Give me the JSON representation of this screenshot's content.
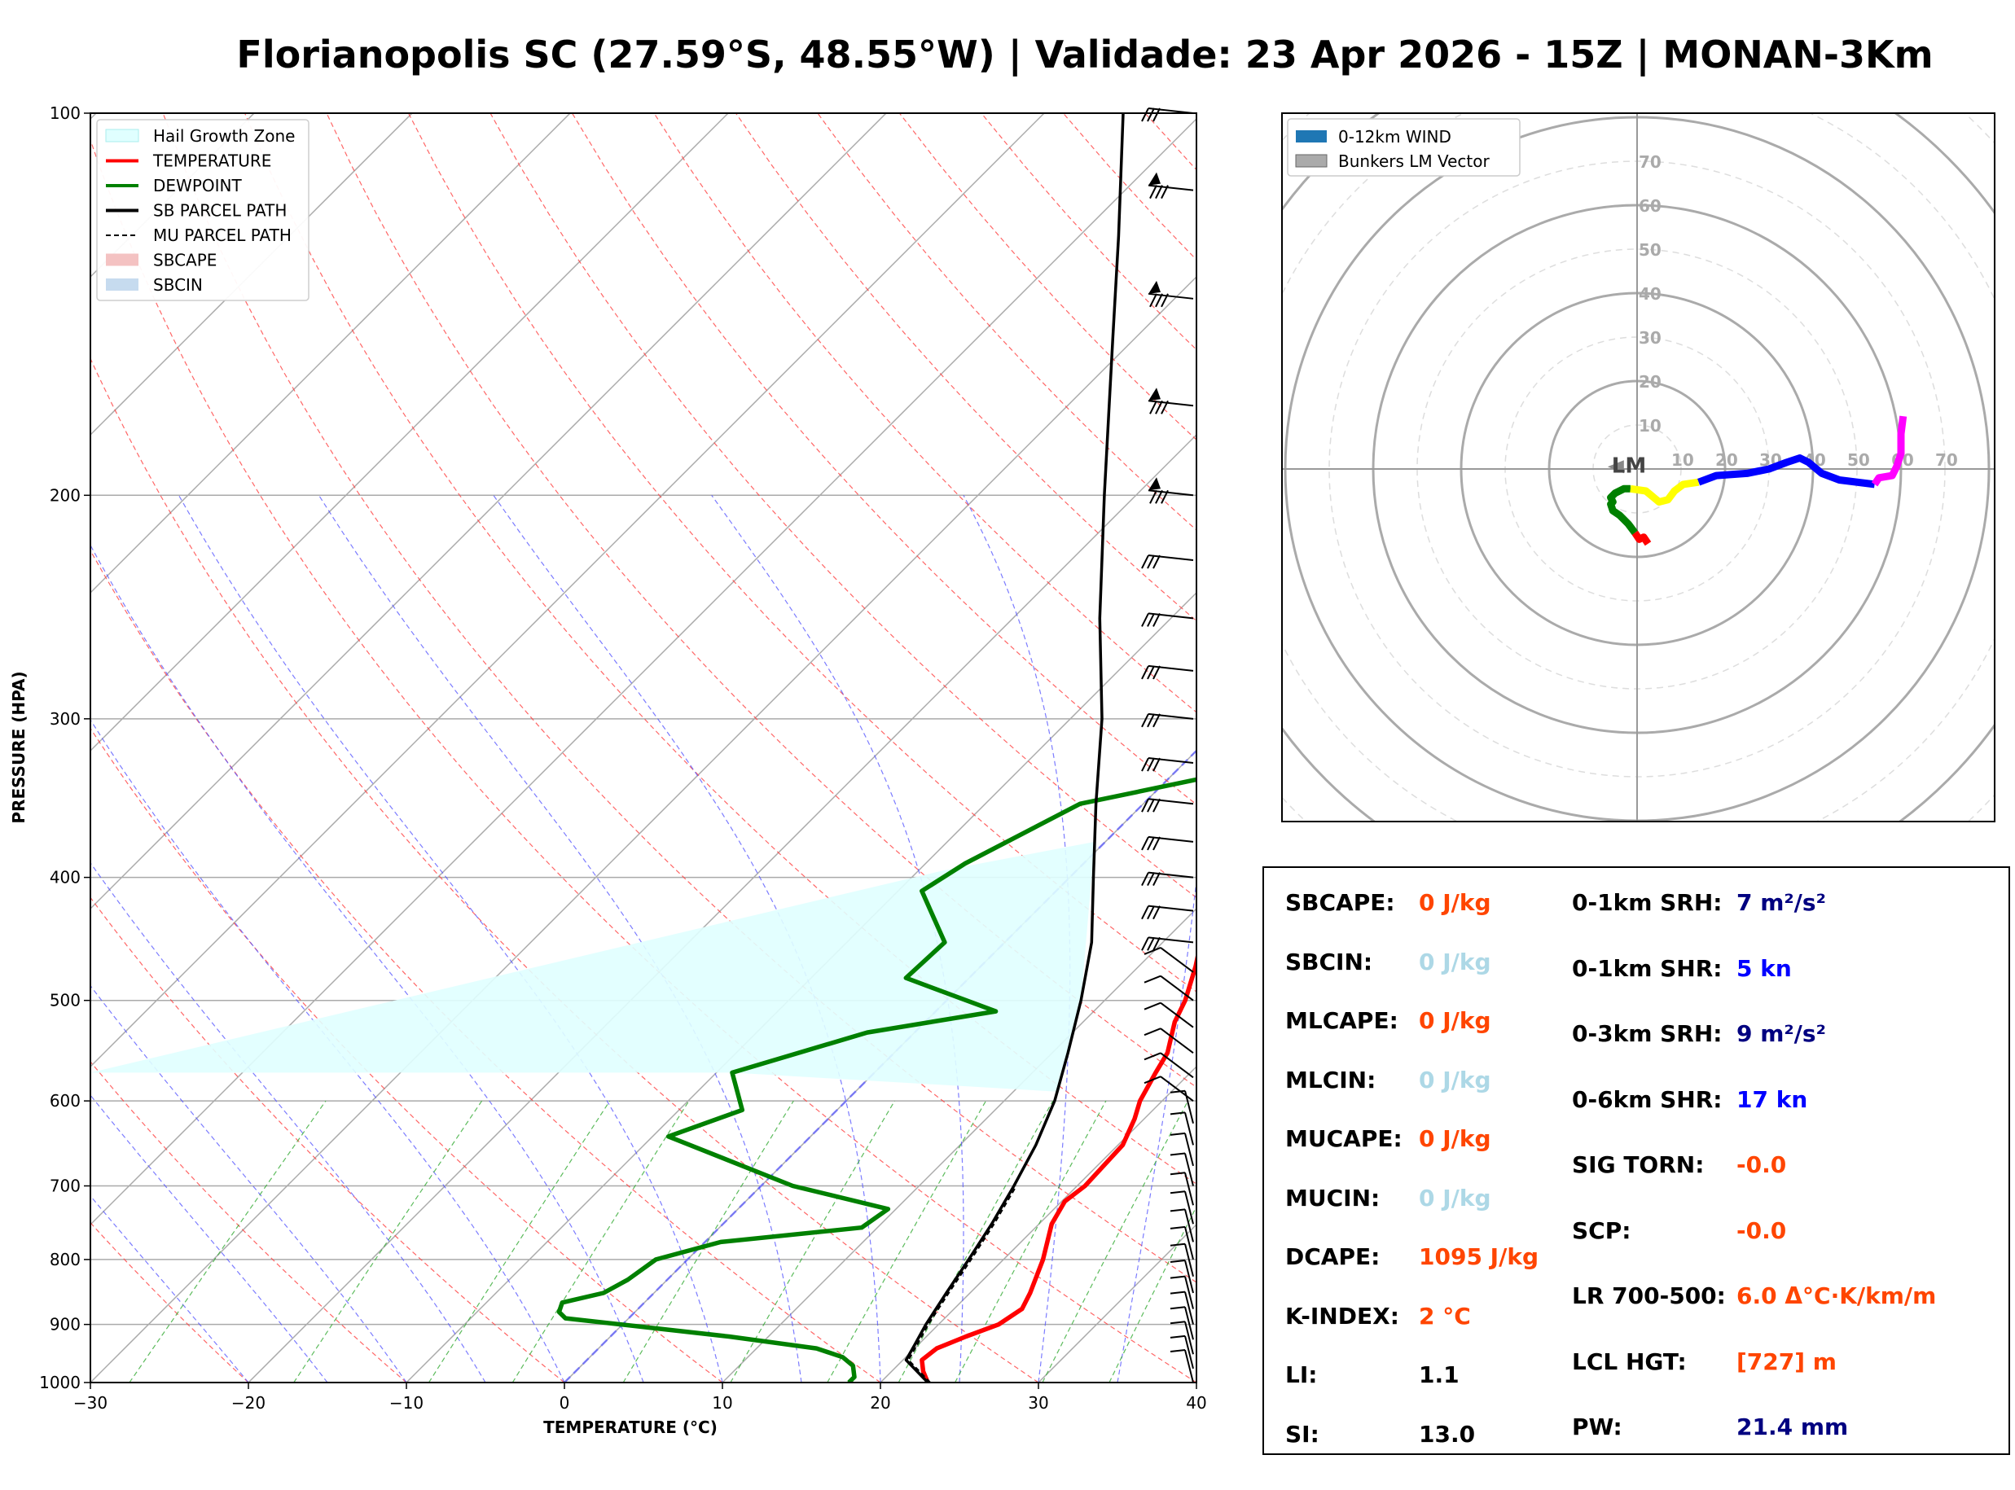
{
  "title": "Florianopolis SC (27.59°S, 48.55°W) | Validade: 23 Apr 2026 - 15Z | MONAN-3Km",
  "chart_data": [
    {
      "type": "line",
      "subtype": "skew-T log-P",
      "xlabel": "TEMPERATURE (°C)",
      "ylabel": "PRESSURE (HPA)",
      "xlim": [
        -30,
        40
      ],
      "ylim": [
        1000,
        100
      ],
      "x_ticks": [
        -30,
        -20,
        -10,
        0,
        10,
        20,
        30,
        40
      ],
      "x_tick_labels": [
        "−30",
        "−20",
        "−10",
        "0",
        "10",
        "20",
        "30",
        "40"
      ],
      "y_ticks": [
        100,
        200,
        300,
        400,
        500,
        600,
        700,
        800,
        900,
        1000
      ],
      "y_tick_labels": [
        "100",
        "200",
        "300",
        "400",
        "500",
        "600",
        "700",
        "800",
        "900",
        "1000"
      ],
      "y_scale": "log",
      "grid": true,
      "legend_position": "top-left",
      "legend": [
        {
          "label": "Hail Growth Zone",
          "color": "#e0ffff",
          "kind": "fill"
        },
        {
          "label": "TEMPERATURE",
          "color": "#ff0000",
          "kind": "line"
        },
        {
          "label": "DEWPOINT",
          "color": "#008000",
          "kind": "line"
        },
        {
          "label": "SB PARCEL PATH",
          "color": "#000000",
          "kind": "line"
        },
        {
          "label": "MU PARCEL PATH",
          "color": "#000000",
          "kind": "dashed"
        },
        {
          "label": "SBCAPE",
          "color": "#f4c2c2",
          "kind": "fill"
        },
        {
          "label": "SBCIN",
          "color": "#c6dbef",
          "kind": "fill"
        }
      ],
      "series": [
        {
          "name": "TEMPERATURE",
          "color": "#ff0000",
          "points": [
            [
              1000,
              23
            ],
            [
              980,
              22
            ],
            [
              960,
              21.2
            ],
            [
              940,
              21.4
            ],
            [
              920,
              22.5
            ],
            [
              900,
              23.8
            ],
            [
              875,
              24.3
            ],
            [
              850,
              23.8
            ],
            [
              800,
              22.5
            ],
            [
              750,
              20.8
            ],
            [
              720,
              20.2
            ],
            [
              700,
              20.5
            ],
            [
              650,
              20.3
            ],
            [
              620,
              19.4
            ],
            [
              600,
              18.6
            ],
            [
              570,
              17.8
            ],
            [
              550,
              17.3
            ],
            [
              520,
              15.8
            ],
            [
              500,
              15.1
            ],
            [
              470,
              13.6
            ],
            [
              450,
              12.4
            ],
            [
              420,
              11.3
            ],
            [
              400,
              11.0
            ],
            [
              380,
              10.0
            ],
            [
              360,
              8.0
            ],
            [
              340,
              5.5
            ],
            [
              300,
              1.5
            ],
            [
              275,
              -1.0
            ],
            [
              250,
              -4.0
            ],
            [
              225,
              -6.5
            ],
            [
              200,
              -8.0
            ],
            [
              175,
              -8.2
            ],
            [
              160,
              -9.5
            ],
            [
              150,
              -9.8
            ],
            [
              140,
              -9.5
            ],
            [
              125,
              -8.3
            ],
            [
              115,
              -7.5
            ],
            [
              100,
              -2.5
            ]
          ]
        },
        {
          "name": "DEWPOINT",
          "color": "#008000",
          "points": [
            [
              1000,
              18
            ],
            [
              990,
              18.0
            ],
            [
              970,
              17.2
            ],
            [
              955,
              16.0
            ],
            [
              940,
              13.8
            ],
            [
              920,
              7.5
            ],
            [
              890,
              -4.0
            ],
            [
              880,
              -4.8
            ],
            [
              865,
              -5.2
            ],
            [
              850,
              -3.2
            ],
            [
              830,
              -2.5
            ],
            [
              800,
              -2.0
            ],
            [
              775,
              1.0
            ],
            [
              755,
              9.0
            ],
            [
              730,
              9.5
            ],
            [
              700,
              2.0
            ],
            [
              640,
              -9.0
            ],
            [
              610,
              -6.0
            ],
            [
              570,
              -9.0
            ],
            [
              530,
              -3.0
            ],
            [
              510,
              3.8
            ],
            [
              480,
              -4.0
            ],
            [
              450,
              -3.8
            ],
            [
              410,
              -8.5
            ],
            [
              390,
              -7.5
            ],
            [
              350,
              -4.0
            ],
            [
              330,
              3.8
            ],
            [
              300,
              3.5
            ],
            [
              270,
              0.5
            ],
            [
              250,
              -2.5
            ],
            [
              225,
              -6.0
            ],
            [
              200,
              -10.0
            ],
            [
              180,
              -10.5
            ],
            [
              165,
              -10.8
            ],
            [
              155,
              -11.5
            ],
            [
              140,
              -12.0
            ],
            [
              125,
              -10.0
            ],
            [
              110,
              -8.0
            ],
            [
              100,
              -7.5
            ]
          ]
        },
        {
          "name": "SB PARCEL PATH",
          "color": "#000000",
          "points": [
            [
              1000,
              23
            ],
            [
              960,
              20.2
            ],
            [
              935,
              19.8
            ],
            [
              900,
              19.2
            ],
            [
              850,
              18.5
            ],
            [
              800,
              17.8
            ],
            [
              750,
              17.0
            ],
            [
              700,
              16.0
            ],
            [
              650,
              14.8
            ],
            [
              600,
              13.2
            ],
            [
              550,
              11.0
            ],
            [
              500,
              8.5
            ],
            [
              450,
              5.5
            ],
            [
              400,
              1.5
            ],
            [
              350,
              -3.0
            ],
            [
              300,
              -8.0
            ],
            [
              250,
              -14.5
            ],
            [
              200,
              -22.0
            ],
            [
              150,
              -31.5
            ],
            [
              125,
              -37.5
            ],
            [
              100,
              -45.0
            ]
          ]
        }
      ],
      "hail_growth_zone": {
        "pressure_top": 375,
        "pressure_bottom": 590
      }
    },
    {
      "type": "line",
      "subtype": "hodograph",
      "rings": [
        10,
        20,
        30,
        40,
        50,
        60,
        70
      ],
      "ring_labels": [
        "10",
        "20",
        "30",
        "40",
        "50",
        "60",
        "70"
      ],
      "axis_tick_labels": [
        "10",
        "20",
        "30",
        "40",
        "50",
        "60",
        "70"
      ],
      "legend_position": "top-left",
      "legend": [
        {
          "label": "0-12km WIND",
          "color": "#1f77b4"
        },
        {
          "label": "Bunkers LM Vector",
          "color": "#aaaaaa"
        }
      ],
      "lm_label": "LM",
      "series": [
        {
          "color": "#ff0000",
          "uv": [
            [
              2.5,
              -17
            ],
            [
              1.5,
              -15.5
            ],
            [
              0.5,
              -16
            ],
            [
              -0.5,
              -14.5
            ]
          ]
        },
        {
          "color": "#008000",
          "uv": [
            [
              -0.5,
              -14.5
            ],
            [
              -2,
              -12.5
            ],
            [
              -4,
              -10.5
            ],
            [
              -5.5,
              -9.5
            ],
            [
              -6,
              -8
            ],
            [
              -5.5,
              -7.5
            ],
            [
              -6,
              -6.5
            ],
            [
              -5,
              -5.5
            ],
            [
              -3,
              -4.5
            ],
            [
              -1.5,
              -4.5
            ]
          ]
        },
        {
          "color": "#ffff00",
          "uv": [
            [
              -1.5,
              -4.5
            ],
            [
              2,
              -5
            ],
            [
              5,
              -7.5
            ],
            [
              7,
              -7
            ],
            [
              8.5,
              -5
            ],
            [
              10.5,
              -3.5
            ],
            [
              14,
              -3
            ]
          ]
        },
        {
          "color": "#0000ff",
          "uv": [
            [
              14,
              -3
            ],
            [
              18,
              -1.5
            ],
            [
              25,
              -1
            ],
            [
              30,
              0
            ],
            [
              34,
              1.5
            ],
            [
              37,
              2.5
            ],
            [
              39,
              1.5
            ],
            [
              42,
              -1
            ],
            [
              46,
              -2.5
            ],
            [
              54,
              -3.5
            ]
          ]
        },
        {
          "color": "#ff00ff",
          "uv": [
            [
              54,
              -3.5
            ],
            [
              55,
              -2
            ],
            [
              58,
              -1.5
            ],
            [
              59,
              0.5
            ],
            [
              60,
              3.5
            ],
            [
              60,
              8
            ],
            [
              60.5,
              12
            ]
          ]
        }
      ],
      "bunkers_lm": [
        -3,
        0.5
      ]
    }
  ],
  "stats": {
    "left": [
      {
        "label": "SBCAPE:",
        "value": "0 J/kg",
        "color": "#ff4500"
      },
      {
        "label": "SBCIN:",
        "value": "0 J/kg",
        "color": "#add8e6"
      },
      {
        "label": "MLCAPE:",
        "value": "0 J/kg",
        "color": "#ff4500"
      },
      {
        "label": "MLCIN:",
        "value": "0 J/kg",
        "color": "#add8e6"
      },
      {
        "label": "MUCAPE:",
        "value": "0 J/kg",
        "color": "#ff4500"
      },
      {
        "label": "MUCIN:",
        "value": "0 J/kg",
        "color": "#add8e6"
      },
      {
        "label": "DCAPE:",
        "value": "1095 J/kg",
        "color": "#ff4500"
      },
      {
        "label": "K-INDEX:",
        "value": "2 °C",
        "color": "#ff4500"
      },
      {
        "label": "LI:",
        "value": "1.1",
        "color": "#000000"
      },
      {
        "label": "SI:",
        "value": "13.0",
        "color": "#000000"
      }
    ],
    "right": [
      {
        "label": "0-1km SRH:",
        "value": "7 m²/s²",
        "color": "#000080"
      },
      {
        "label": "0-1km SHR:",
        "value": "5 kn",
        "color": "#0000ff"
      },
      {
        "label": "0-3km SRH:",
        "value": "9 m²/s²",
        "color": "#000080"
      },
      {
        "label": "0-6km SHR:",
        "value": "17 kn",
        "color": "#0000ff"
      },
      {
        "label": "SIG TORN:",
        "value": "-0.0",
        "color": "#ff4500"
      },
      {
        "label": "SCP:",
        "value": "-0.0",
        "color": "#ff4500"
      },
      {
        "label": "LR 700-500:",
        "value": "6.0 Δ°C·K/km/m",
        "color": "#ff4500"
      },
      {
        "label": "LCL HGT:",
        "value": "[727] m",
        "color": "#ff4500"
      },
      {
        "label": "PW:",
        "value": "21.4 mm",
        "color": "#000080"
      }
    ]
  }
}
